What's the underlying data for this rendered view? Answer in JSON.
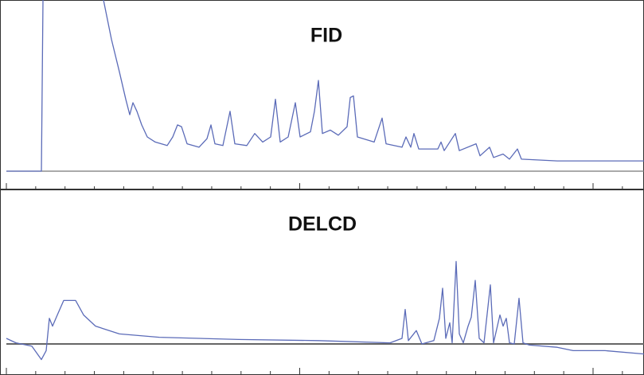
{
  "chart_data": [
    {
      "type": "line",
      "title": "FID",
      "color": "#5b6bb8",
      "xlim": [
        8,
        809
      ],
      "ylim": [
        0,
        100
      ],
      "x": [
        8,
        52,
        54,
        92,
        130,
        140,
        150,
        158,
        163,
        167,
        172,
        178,
        185,
        195,
        210,
        217,
        223,
        228,
        235,
        250,
        260,
        265,
        270,
        280,
        289,
        295,
        310,
        320,
        330,
        340,
        346,
        352,
        362,
        371,
        377,
        390,
        395,
        400,
        405,
        415,
        425,
        436,
        440,
        444,
        449,
        470,
        480,
        485,
        505,
        510,
        516,
        520,
        526,
        550,
        554,
        558,
        572,
        577,
        598,
        603,
        615,
        620,
        632,
        640,
        650,
        655,
        700,
        809
      ],
      "values": [
        0,
        0,
        100,
        null,
        100,
        77,
        58,
        42,
        33,
        40,
        35,
        27,
        20,
        17,
        15,
        20,
        27,
        26,
        16,
        14,
        19,
        27,
        16,
        15,
        35,
        16,
        15,
        22,
        17,
        20,
        42,
        17,
        20,
        40,
        20,
        23,
        35,
        53,
        22,
        24,
        21,
        26,
        43,
        44,
        20,
        17,
        31,
        16,
        14,
        20,
        14,
        22,
        13,
        13,
        17,
        12,
        22,
        12,
        16,
        9,
        14,
        8,
        10,
        7,
        13,
        7,
        6,
        6
      ]
    },
    {
      "type": "line",
      "title": "DELCD",
      "color": "#5b6bb8",
      "xlim": [
        8,
        809
      ],
      "ylim": [
        -20,
        130
      ],
      "x": [
        8,
        20,
        40,
        52,
        58,
        62,
        66,
        72,
        80,
        95,
        105,
        120,
        150,
        200,
        300,
        400,
        490,
        505,
        509,
        513,
        523,
        530,
        545,
        552,
        556,
        560,
        565,
        568,
        573,
        577,
        582,
        588,
        592,
        597,
        602,
        608,
        616,
        620,
        628,
        632,
        636,
        640,
        646,
        652,
        657,
        665,
        700,
        720,
        760,
        809
      ],
      "values": [
        5,
        1,
        -2,
        -14,
        -6,
        23,
        16,
        26,
        39,
        39,
        26,
        16,
        9,
        6,
        4,
        3,
        1,
        5,
        31,
        3,
        12,
        0,
        3,
        23,
        50,
        5,
        19,
        1,
        74,
        9,
        1,
        16,
        24,
        57,
        5,
        1,
        53,
        1,
        26,
        16,
        23,
        1,
        0,
        41,
        1,
        -1,
        -3,
        -6,
        -6,
        -9
      ]
    }
  ]
}
